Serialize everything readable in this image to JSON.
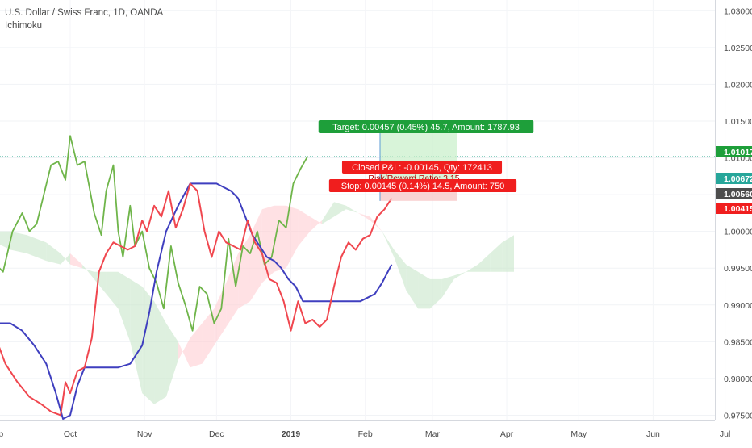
{
  "header": {
    "title": "U.S. Dollar / Swiss Franc, 1D, OANDA",
    "indicator": "Ichimoku"
  },
  "colors": {
    "candle_up": "#26a69a",
    "candle_down": "#ef5350",
    "lagging_span": "#6fb54a",
    "conversion_line": "#f0474f",
    "base_line": "#3f3fbf",
    "cloud_bull": "#c8e6c9",
    "cloud_bear": "#ffcdd2",
    "target_green": "#1e9f3a",
    "stop_red": "#f01e1e",
    "price_dark": "#4d4d4d",
    "price_teal": "#26a69a",
    "dotted_level": "#1ba384"
  },
  "chart_data": {
    "type": "line",
    "instrument": "U.S. Dollar / Swiss Franc, 1D, OANDA",
    "y_ticks": [
      "1.03000",
      "1.02500",
      "1.02000",
      "1.01500",
      "1.01000",
      "1.00500",
      "1.00000",
      "0.99500",
      "0.99000",
      "0.98500",
      "0.98000",
      "0.97500"
    ],
    "ylim": [
      0.9745,
      1.0308
    ],
    "x_ticks": [
      "Sep",
      "Oct",
      "Nov",
      "Dec",
      "2019",
      "Feb",
      "Mar",
      "Apr",
      "May",
      "Jun",
      "Jul"
    ],
    "x_tick_days": [
      -31,
      0,
      31,
      61,
      92,
      123,
      151,
      182,
      212,
      243,
      273
    ],
    "x_origin": "2018-10-01",
    "price_labels": [
      {
        "text": "1.01017",
        "value": 1.01017,
        "color": "#1e9f3a"
      },
      {
        "text": "1.00672",
        "value": 1.00672,
        "color": "#26a69a"
      },
      {
        "text": "1.00560",
        "value": 1.0056,
        "color": "#4d4d4d"
      },
      {
        "text": "1.00415",
        "value": 1.00415,
        "color": "#f01e1e"
      }
    ],
    "position": {
      "target_label": "Target: 0.00457 (0.45%) 45.7, Amount: 1787.93",
      "closed_label": "Closed P&L: -0.00145, Qty: 172413",
      "ratio_label": "Risk/Reward Ratio: 3.15",
      "stop_label": "Stop: 0.00145 (0.14%) 14.5, Amount: 750",
      "entry": 1.0056,
      "target": 1.01017,
      "stop": 1.00415
    },
    "series": [
      {
        "name": "Lagging Span",
        "color": "#6fb54a",
        "x": [
          -31,
          -28,
          -24,
          -20,
          -17,
          -14,
          -11,
          -8,
          -5,
          -2,
          0,
          3,
          6,
          8,
          10,
          13,
          15,
          18,
          20,
          22,
          25,
          27,
          30,
          33,
          36,
          39,
          42,
          45,
          48,
          51,
          54,
          57,
          60,
          63,
          66,
          69,
          72,
          75,
          78,
          81,
          84,
          87,
          90,
          93,
          96,
          99
        ],
        "y": [
          0.9955,
          0.9945,
          1.0,
          1.0025,
          1.0,
          1.001,
          1.005,
          1.009,
          1.0095,
          1.007,
          1.013,
          1.009,
          1.0095,
          1.006,
          1.0025,
          0.9995,
          1.0055,
          1.009,
          1.0,
          0.9965,
          1.0035,
          0.998,
          1.0,
          0.995,
          0.993,
          0.9895,
          0.998,
          0.993,
          0.99,
          0.9865,
          0.9925,
          0.9915,
          0.9875,
          0.9895,
          0.999,
          0.9925,
          0.998,
          0.997,
          1.0,
          0.9955,
          0.9965,
          1.0015,
          1.0005,
          1.0065,
          1.0085,
          1.0102
        ]
      },
      {
        "name": "Conversion Line",
        "color": "#f0474f",
        "x": [
          -31,
          -27,
          -22,
          -17,
          -12,
          -8,
          -4,
          -2,
          0,
          3,
          6,
          9,
          12,
          15,
          18,
          21,
          24,
          27,
          30,
          32,
          35,
          38,
          41,
          44,
          47,
          50,
          53,
          56,
          59,
          62,
          65,
          68,
          71,
          74,
          77,
          80,
          83,
          86,
          89,
          92,
          95,
          98,
          101,
          104,
          107,
          110,
          113,
          116,
          119,
          122,
          125,
          128,
          131,
          134
        ],
        "y": [
          0.9855,
          0.982,
          0.9795,
          0.9775,
          0.9765,
          0.9755,
          0.975,
          0.9795,
          0.978,
          0.981,
          0.9815,
          0.9855,
          0.9945,
          0.997,
          0.9985,
          0.998,
          0.9975,
          0.998,
          1.0015,
          1.0,
          1.0035,
          1.002,
          1.0055,
          1.0005,
          1.003,
          1.0065,
          1.0055,
          1.0,
          0.9965,
          1.0,
          0.9985,
          0.998,
          0.9975,
          1.0015,
          0.9985,
          0.997,
          0.9935,
          0.993,
          0.9905,
          0.9865,
          0.9905,
          0.9875,
          0.988,
          0.987,
          0.988,
          0.9925,
          0.9965,
          0.9985,
          0.9975,
          0.999,
          0.9995,
          1.002,
          1.003,
          1.0045
        ]
      },
      {
        "name": "Base Line",
        "color": "#3f3fbf",
        "x": [
          -31,
          -25,
          -20,
          -15,
          -10,
          -6,
          -3,
          0,
          3,
          6,
          10,
          15,
          20,
          25,
          30,
          33,
          36,
          40,
          45,
          50,
          55,
          58,
          61,
          64,
          67,
          70,
          73,
          76,
          79,
          82,
          85,
          88,
          91,
          94,
          97,
          100,
          103,
          106,
          109,
          112,
          115,
          118,
          121,
          124,
          127,
          130,
          134
        ],
        "y": [
          0.9875,
          0.9875,
          0.9865,
          0.9845,
          0.982,
          0.978,
          0.9745,
          0.975,
          0.979,
          0.9815,
          0.9815,
          0.9815,
          0.9815,
          0.982,
          0.9845,
          0.989,
          0.9945,
          1.0,
          1.0035,
          1.0065,
          1.0065,
          1.0065,
          1.0065,
          1.006,
          1.0055,
          1.0045,
          1.002,
          0.9995,
          0.998,
          0.9965,
          0.996,
          0.995,
          0.9935,
          0.9925,
          0.9905,
          0.9905,
          0.9905,
          0.9905,
          0.9905,
          0.9905,
          0.9905,
          0.9905,
          0.9905,
          0.991,
          0.9915,
          0.993,
          0.9955
        ]
      },
      {
        "name": "Leading Span A",
        "color": "#6fb54a",
        "x": [
          -31,
          -25,
          -18,
          -10,
          -4,
          0,
          5,
          10,
          15,
          20,
          25,
          30,
          35,
          40,
          45,
          50,
          55,
          60,
          65,
          70,
          75,
          80,
          85,
          90,
          95,
          100,
          105,
          110,
          115,
          120,
          125,
          130,
          135,
          140,
          145,
          150,
          155,
          160,
          165,
          170,
          175,
          180,
          185
        ],
        "y": [
          1.0,
          1.0,
          0.9995,
          0.9985,
          0.997,
          0.9955,
          0.995,
          0.9945,
          0.9945,
          0.9945,
          0.9935,
          0.9925,
          0.9905,
          0.9875,
          0.985,
          0.9815,
          0.982,
          0.9845,
          0.987,
          0.9895,
          0.9905,
          0.993,
          0.9945,
          0.995,
          0.998,
          1.0,
          1.0015,
          1.004,
          1.0035,
          1.0025,
          1.0015,
          1.0,
          0.9975,
          0.9955,
          0.9945,
          0.9935,
          0.9935,
          0.994,
          0.9945,
          0.9955,
          0.997,
          0.9985,
          0.9995
        ]
      },
      {
        "name": "Leading Span B",
        "color": "#f0474f",
        "x": [
          -31,
          -25,
          -18,
          -10,
          -4,
          0,
          5,
          10,
          15,
          20,
          25,
          30,
          35,
          40,
          45,
          50,
          55,
          60,
          65,
          70,
          75,
          80,
          85,
          90,
          95,
          100,
          105,
          110,
          115,
          120,
          125,
          130,
          135,
          140,
          145,
          150,
          155,
          160,
          165,
          170,
          175,
          180,
          185
        ],
        "y": [
          0.9985,
          0.9975,
          0.997,
          0.996,
          0.9955,
          0.997,
          0.9955,
          0.9935,
          0.9915,
          0.9895,
          0.985,
          0.978,
          0.9765,
          0.9775,
          0.9825,
          0.9855,
          0.9875,
          0.9895,
          0.993,
          0.997,
          0.9995,
          1.003,
          1.0035,
          1.0035,
          1.003,
          1.002,
          1.001,
          1.002,
          1.003,
          1.0025,
          1.002,
          1.0,
          0.9965,
          0.992,
          0.9895,
          0.9895,
          0.991,
          0.9935,
          0.9945,
          0.9945,
          0.9945,
          0.9945,
          0.9945
        ]
      }
    ]
  }
}
